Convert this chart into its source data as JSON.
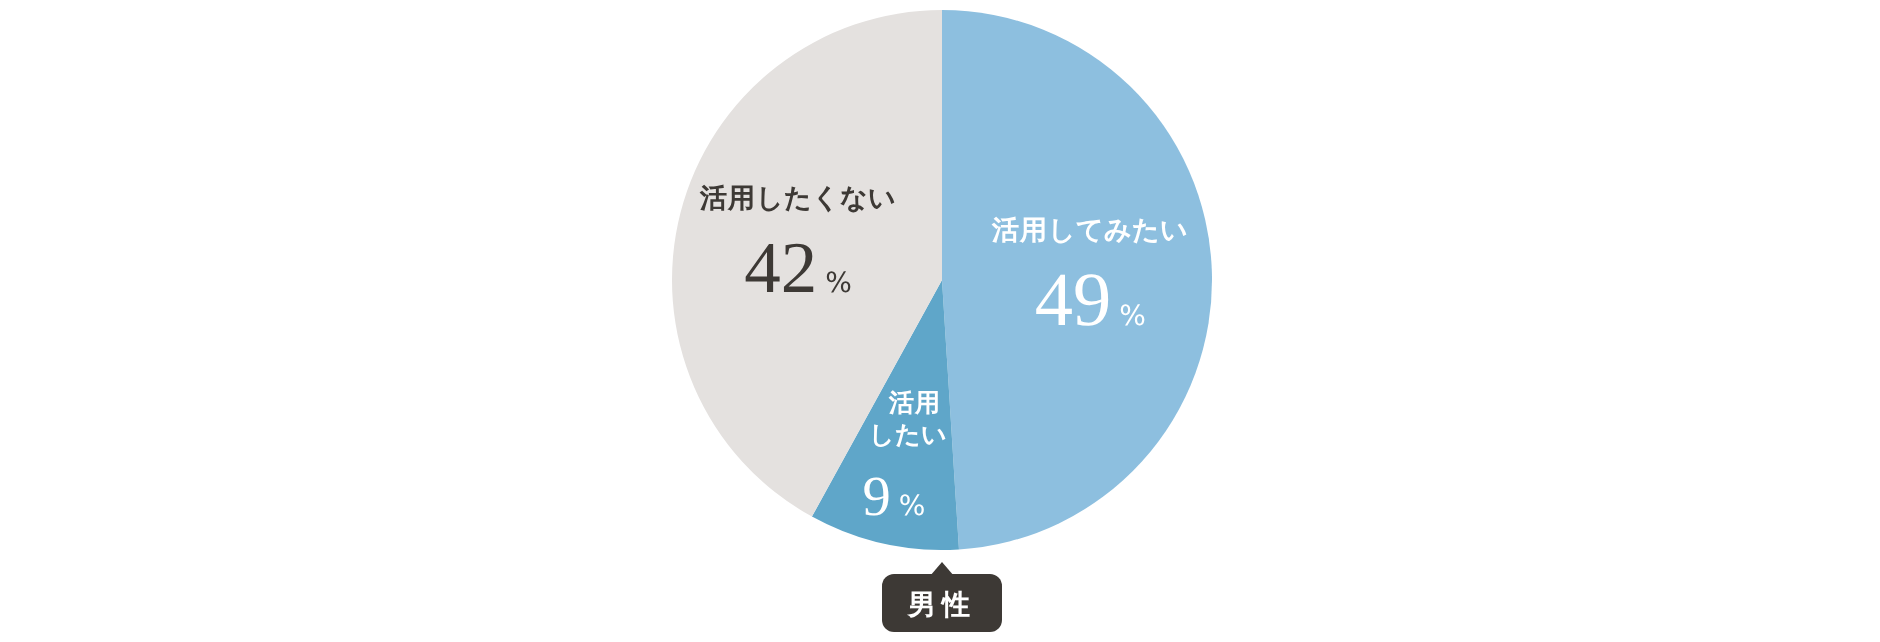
{
  "chart_data": {
    "type": "pie",
    "title": "男性",
    "categories": [
      "活用してみたい",
      "活用したい",
      "活用したくない"
    ],
    "values": [
      49,
      9,
      42
    ],
    "colors": [
      "#8dbfdf",
      "#5fa6c9",
      "#e4e1df"
    ],
    "value_labels": [
      "49%",
      "9%",
      "42%"
    ]
  }
}
